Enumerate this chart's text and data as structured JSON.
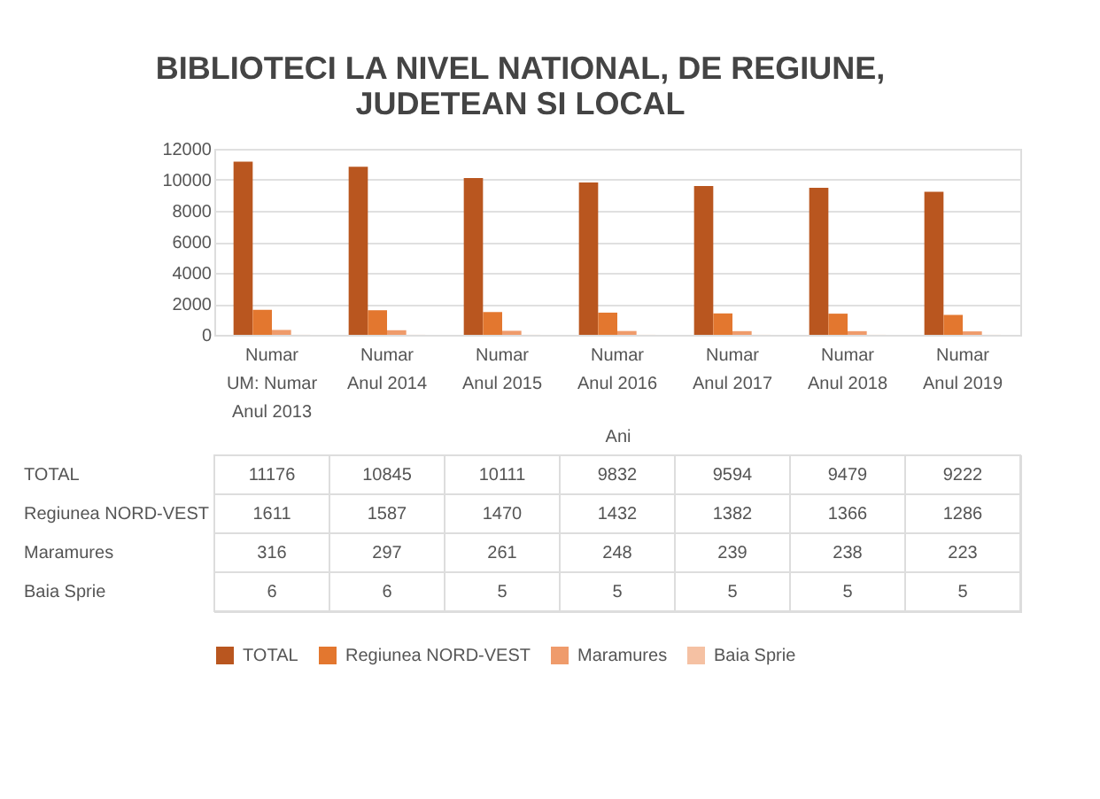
{
  "chart_data": {
    "type": "bar",
    "title": "BIBLIOTECI LA NIVEL NATIONAL, DE REGIUNE,\nJUDETEAN SI LOCAL",
    "xlabel": "Ani",
    "categories": [
      "Numar\nUM: Numar\nAnul 2013",
      "Numar\n\nAnul 2014",
      "Numar\n\nAnul 2015",
      "Numar\n\nAnul 2016",
      "Numar\n\nAnul 2017",
      "Numar\n\nAnul 2018",
      "Numar\n\nAnul 2019"
    ],
    "series": [
      {
        "name": "TOTAL",
        "color": "#b9561f",
        "values": [
          11176,
          10845,
          10111,
          9832,
          9594,
          9479,
          9222
        ]
      },
      {
        "name": "Regiunea NORD-VEST",
        "color": "#e3772f",
        "values": [
          1611,
          1587,
          1470,
          1432,
          1382,
          1366,
          1286
        ]
      },
      {
        "name": "Maramures",
        "color": "#ef9b6b",
        "values": [
          316,
          297,
          261,
          248,
          239,
          238,
          223
        ]
      },
      {
        "name": "Baia Sprie",
        "color": "#f5c1a3",
        "values": [
          6,
          6,
          5,
          5,
          5,
          5,
          5
        ]
      }
    ],
    "ylim": [
      0,
      12000
    ],
    "yticks": [
      0,
      2000,
      4000,
      6000,
      8000,
      10000,
      12000
    ],
    "grid": "y",
    "legend": "bottom",
    "data_labels": true
  }
}
